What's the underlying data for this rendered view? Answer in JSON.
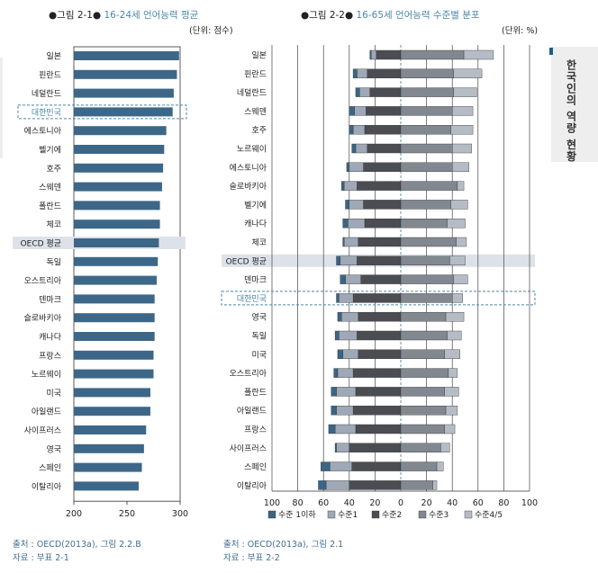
{
  "fig1": {
    "fig_no": "●그림 2-1●",
    "title": "16-24세 언어능력 평균",
    "unit": "(단위: 점수)",
    "source": "출처 : OECD(2013a), 그림 2.2.B",
    "data_note": "자료 : 부표 2-1"
  },
  "fig2": {
    "fig_no": "●그림 2-2●",
    "title": "16-65세 언어능력 수준별 분포",
    "unit": "(단위: %)",
    "source": "출처 : OECD(2013a), 그림 2.1",
    "data_note": "자료 : 부표 2-2"
  },
  "side_tab": {
    "text": "한국인의 역량 현황"
  },
  "chart_data": [
    {
      "type": "bar",
      "orientation": "horizontal",
      "categories": [
        "일본",
        "핀란드",
        "네덜란드",
        "대한민국",
        "에스토니아",
        "벨기에",
        "호주",
        "스웨덴",
        "폴란드",
        "체코",
        "OECD 평균",
        "독일",
        "오스트리아",
        "덴마크",
        "슬로바키아",
        "캐나다",
        "프랑스",
        "노르웨이",
        "미국",
        "아일랜드",
        "사이프러스",
        "영국",
        "스페인",
        "이탈리아"
      ],
      "values": [
        299,
        297,
        294,
        293,
        287,
        285,
        284,
        283,
        281,
        281,
        280,
        279,
        278,
        276,
        276,
        276,
        275,
        275,
        272,
        272,
        268,
        266,
        264,
        261
      ],
      "xlim": [
        200,
        300
      ],
      "xticks": [
        "200",
        "250",
        "300"
      ],
      "highlight_box": "대한민국",
      "highlight_band": "OECD 평균",
      "colors": {
        "bar": "#3d6788",
        "highlight": "#dde2ea",
        "box": "#4a87a8"
      }
    },
    {
      "type": "bar",
      "orientation": "horizontal",
      "stacked": "diverging",
      "categories": [
        "일본",
        "핀란드",
        "네덜란드",
        "스웨덴",
        "호주",
        "노르웨이",
        "에스토니아",
        "슬로바키아",
        "벨기에",
        "캐나다",
        "체코",
        "OECD 평균",
        "덴마크",
        "대한민국",
        "영국",
        "독일",
        "미국",
        "오스트리아",
        "폴란드",
        "아일랜드",
        "프랑스",
        "사이프러스",
        "스페인",
        "이탈리아"
      ],
      "xlim": [
        -100,
        100
      ],
      "xticks": [
        "100",
        "80",
        "60",
        "40",
        "20",
        "0",
        "20",
        "40",
        "60",
        "80",
        "100"
      ],
      "series": [
        {
          "name": "수준 1이하",
          "side": "negative",
          "color": "#3b6585",
          "values": [
            1,
            3,
            3,
            4,
            3,
            3,
            2,
            2,
            3,
            4,
            1,
            3,
            4,
            2,
            3,
            3,
            4,
            3,
            4,
            4,
            5,
            1,
            7,
            6
          ]
        },
        {
          "name": "수준1",
          "side": "negative",
          "color": "#9ea8b6",
          "values": [
            4,
            8,
            8,
            9,
            9,
            9,
            11,
            10,
            11,
            13,
            11,
            13,
            12,
            11,
            13,
            14,
            12,
            12,
            15,
            13,
            16,
            10,
            17,
            18
          ]
        },
        {
          "name": "수준2",
          "side": "negative",
          "color": "#4b4d52",
          "values": [
            19,
            26,
            24,
            27,
            28,
            26,
            29,
            34,
            29,
            28,
            33,
            34,
            31,
            37,
            33,
            34,
            33,
            37,
            35,
            37,
            35,
            40,
            38,
            40
          ]
        },
        {
          "name": "수준3",
          "side": "positive",
          "color": "#82888f",
          "values": [
            49,
            41,
            41,
            40,
            39,
            40,
            40,
            44,
            39,
            36,
            43,
            38,
            41,
            40,
            35,
            36,
            34,
            37,
            34,
            35,
            34,
            31,
            28,
            25
          ]
        },
        {
          "name": "수준4/5",
          "side": "positive",
          "color": "#b6bcc6",
          "values": [
            23,
            22,
            18,
            16,
            17,
            15,
            13,
            5,
            13,
            14,
            8,
            12,
            11,
            8,
            14,
            11,
            12,
            7,
            11,
            9,
            8,
            7,
            5,
            3
          ]
        }
      ],
      "highlight_box": "대한민국",
      "highlight_band": "OECD 평균",
      "colors": {
        "highlight": "#dde2ea",
        "box": "#4a87a8"
      }
    }
  ]
}
